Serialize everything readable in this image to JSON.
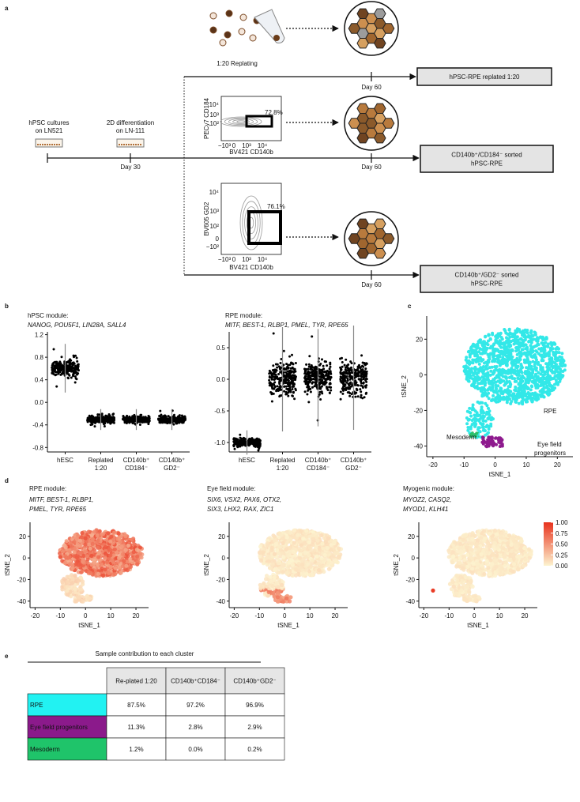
{
  "panel_labels": [
    "a",
    "b",
    "c",
    "d",
    "e"
  ],
  "panel_a": {
    "replating_label": "1:20 Replating",
    "start_lines": [
      "hPSC cultures",
      "on LN521"
    ],
    "diff_lines": [
      "2D differentiation",
      "on LN-111"
    ],
    "day30": "Day 30",
    "day60": [
      "Day 60",
      "Day 60",
      "Day 60"
    ],
    "outcomes": [
      [
        "hPSC-RPE replated 1:20"
      ],
      [
        "CD140b⁺/CD184⁻ sorted",
        "hPSC-RPE"
      ],
      [
        "CD140b⁺/GD2⁻ sorted",
        "hPSC-RPE"
      ]
    ],
    "flow_plots": [
      {
        "y_label": "PECy7 CD184",
        "x_label": "BV421 CD140b",
        "gate": "72.8%",
        "y_ticks": [
          "10⁴",
          "10³",
          "10²"
        ],
        "x_ticks": [
          "−10³",
          "0",
          "10³",
          "10⁴"
        ]
      },
      {
        "y_label": "BV605 GD2",
        "x_label": "BV421 CD140b",
        "gate": "76.1%",
        "y_ticks": [
          "10⁴",
          "10³",
          "10²",
          "0",
          "−10²"
        ],
        "x_ticks": [
          "−10³",
          "0",
          "10³",
          "10⁴"
        ]
      }
    ]
  },
  "panel_b": {
    "plots": [
      {
        "title": "hPSC module:",
        "genes": "NANOG, POU5F1, LIN28A, SALL4",
        "ylim": [
          -0.88,
          1.25
        ],
        "yticks": [
          1.2,
          0.8,
          0.4,
          {
            "value": 0,
            "label": "0.0"
          },
          -0.4,
          -0.8
        ],
        "categories": [
          [
            "hESC"
          ],
          [
            "Replated",
            "1:20"
          ],
          [
            "CD140b⁺",
            "CD184⁻"
          ],
          [
            "CD140b⁺",
            "GD2⁻"
          ]
        ]
      },
      {
        "title": "RPE module:",
        "genes": "MITF, BEST-1, RLBP1, PMEL, TYR, RPE65",
        "ylim": [
          -1.15,
          0.75
        ],
        "yticks": [
          0.5,
          {
            "value": 0,
            "label": "0.0"
          },
          -0.5,
          {
            "value": -1,
            "label": "-1.0"
          }
        ],
        "categories": [
          [
            "hESC"
          ],
          [
            "Replated",
            "1:20"
          ],
          [
            "CD140b⁺",
            "CD184⁻"
          ],
          [
            "CD140b⁺",
            "GD2⁻"
          ]
        ]
      }
    ]
  },
  "panel_c": {
    "x_label": "tSNE_1",
    "y_label": "tSNE_2",
    "xlim": [
      -22,
      25
    ],
    "ylim": [
      -46,
      33
    ],
    "xticks": [
      -20,
      -10,
      0,
      10,
      20
    ],
    "yticks": [
      20,
      0,
      -20,
      -40
    ],
    "clusters": [
      {
        "name_lines": [
          "RPE"
        ],
        "color": "#33e8e8"
      },
      {
        "name_lines": [
          "Mesoderm"
        ],
        "color": "#2bbf6a"
      },
      {
        "name_lines": [
          "Eye field",
          "progenitors"
        ],
        "color": "#8e1a8e"
      }
    ]
  },
  "panel_d": {
    "x_label": "tSNE_1",
    "y_label": "tSNE_2",
    "xlim": [
      -22,
      25
    ],
    "ylim": [
      -46,
      33
    ],
    "xticks": [
      -20,
      -10,
      0,
      10,
      20
    ],
    "yticks": [
      20,
      0,
      -20,
      -40
    ],
    "plots": [
      {
        "title": "RPE module:",
        "gene_lines": [
          "MITF, BEST-1, RLBP1,",
          "PMEL, TYR, RPE65"
        ]
      },
      {
        "title": "Eye field module:",
        "gene_lines": [
          "SIX6, VSX2, PAX6, OTX2,",
          "SIX3, LHX2, RAX, ZIC1"
        ]
      },
      {
        "title": "Myogenic module:",
        "gene_lines": [
          "MYOZ2, CASQ2,",
          "MYOD1, KLH41"
        ]
      }
    ],
    "colorbar": {
      "lim": [
        0,
        1
      ],
      "ticks": [
        {
          "value": 1,
          "label": "1.00"
        },
        0.75,
        {
          "value": 0.5,
          "label": "0.50"
        },
        0.25,
        {
          "value": 0,
          "label": "0.00"
        }
      ],
      "colors": [
        "#fdf3cf",
        "#e8321d"
      ]
    }
  },
  "panel_e": {
    "title": "Sample contribution to each cluster",
    "columns": [
      "Re-plated 1:20",
      "CD140b⁺CD184⁻",
      "CD140b⁺GD2⁻"
    ],
    "rows": [
      {
        "name": "RPE",
        "color": "#22f2f2",
        "text_color": "#000000",
        "cells": [
          "87.5%",
          "97.2%",
          "96.9%"
        ]
      },
      {
        "name": "Eye field progenitors",
        "color": "#8b1a8b",
        "text_color": "#ffffff",
        "cells": [
          "11.3%",
          "2.8%",
          "2.9%"
        ]
      },
      {
        "name": "Mesoderm",
        "color": "#1fc46a",
        "text_color": "#000000",
        "cells": [
          "1.2%",
          "0.0%",
          "0.2%"
        ]
      }
    ]
  }
}
